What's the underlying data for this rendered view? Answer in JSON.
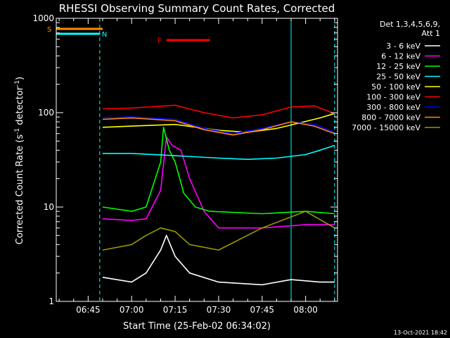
{
  "chart_data": {
    "type": "line",
    "title": "RHESSI Observing Summary Count Rates, Corrected",
    "xlabel": "Start Time (25-Feb-02 06:34:02)",
    "ylabel_main": "Corrected Count Rate (s",
    "ylabel_sup1": "-1",
    "ylabel_mid": " detector",
    "ylabel_sup2": "-1",
    "ylabel_end": ")",
    "yscale": "log",
    "ylim": [
      1,
      1000
    ],
    "xlim": [
      "06:34",
      "08:11"
    ],
    "x_ticks": [
      "06:45",
      "07:00",
      "07:15",
      "07:30",
      "07:45",
      "08:00"
    ],
    "y_ticks": [
      "1",
      "10",
      "100",
      "1000"
    ],
    "legend_placement": "top-right",
    "legend_header": [
      "Det 1,3,4,5,6,9,",
      "Att 1"
    ],
    "timestamp": "13-Oct-2021 18:42",
    "flags": [
      {
        "label": "S",
        "color": "#ff8c00",
        "start": "06:34",
        "end": "06:50"
      },
      {
        "label": "N",
        "color": "#00ffff",
        "start": "06:34",
        "end": "06:49"
      },
      {
        "label": "F",
        "color": "#ff0000",
        "start": "07:12",
        "end": "07:27"
      }
    ],
    "night_markers": {
      "solid": [
        "06:34",
        "07:55"
      ],
      "dashed": [
        "06:49",
        "08:10"
      ]
    },
    "series": [
      {
        "name": "3 - 6 keV",
        "color": "#ffffff",
        "x": [
          "06:50",
          "07:00",
          "07:05",
          "07:10",
          "07:12",
          "07:15",
          "07:20",
          "07:30",
          "07:45",
          "07:55",
          "08:05",
          "08:10"
        ],
        "y": [
          1.8,
          1.6,
          2.0,
          3.5,
          5.0,
          3.0,
          2.0,
          1.6,
          1.5,
          1.7,
          1.6,
          1.6
        ]
      },
      {
        "name": "6 - 12 keV",
        "color": "#ff00ff",
        "x": [
          "06:50",
          "07:00",
          "07:05",
          "07:10",
          "07:12",
          "07:14",
          "07:17",
          "07:20",
          "07:25",
          "07:30",
          "07:45",
          "08:00",
          "08:10"
        ],
        "y": [
          7.5,
          7.2,
          7.5,
          15,
          55,
          45,
          40,
          20,
          9,
          6,
          6,
          6.5,
          6.5
        ]
      },
      {
        "name": "12 - 25 keV",
        "color": "#00ff00",
        "x": [
          "06:50",
          "07:00",
          "07:05",
          "07:10",
          "07:11",
          "07:13",
          "07:15",
          "07:18",
          "07:22",
          "07:27",
          "07:45",
          "08:00",
          "08:10"
        ],
        "y": [
          10,
          9,
          10,
          30,
          70,
          40,
          30,
          14,
          10,
          9,
          8.5,
          9,
          8.5
        ]
      },
      {
        "name": "25 - 50 keV",
        "color": "#00ffff",
        "x": [
          "06:50",
          "07:00",
          "07:15",
          "07:30",
          "07:40",
          "07:50",
          "08:00",
          "08:05",
          "08:10"
        ],
        "y": [
          37,
          37,
          35,
          33,
          32,
          33,
          36,
          40,
          45
        ]
      },
      {
        "name": "50 - 100 keV",
        "color": "#ffff00",
        "x": [
          "06:50",
          "07:00",
          "07:15",
          "07:30",
          "07:40",
          "07:50",
          "07:58",
          "08:05",
          "08:10"
        ],
        "y": [
          70,
          72,
          75,
          65,
          62,
          68,
          78,
          88,
          98
        ]
      },
      {
        "name": "100 - 300 keV",
        "color": "#ff0000",
        "x": [
          "06:50",
          "07:00",
          "07:15",
          "07:25",
          "07:35",
          "07:45",
          "07:55",
          "08:03",
          "08:10"
        ],
        "y": [
          110,
          112,
          120,
          100,
          88,
          95,
          115,
          118,
          98
        ]
      },
      {
        "name": "300 - 800 keV",
        "color": "#0000ff",
        "x": [
          "06:50",
          "07:00",
          "07:15",
          "07:25",
          "07:35",
          "07:45",
          "07:55",
          "08:03",
          "08:10"
        ],
        "y": [
          88,
          90,
          85,
          68,
          60,
          68,
          80,
          75,
          62
        ]
      },
      {
        "name": "800 - 7000 keV",
        "color": "#ff8c00",
        "x": [
          "06:50",
          "07:00",
          "07:15",
          "07:25",
          "07:35",
          "07:45",
          "07:55",
          "08:03",
          "08:10"
        ],
        "y": [
          85,
          88,
          82,
          66,
          58,
          66,
          80,
          72,
          60
        ]
      },
      {
        "name": "7000 - 15000 keV",
        "color": "#999900",
        "x": [
          "06:50",
          "07:00",
          "07:05",
          "07:10",
          "07:15",
          "07:20",
          "07:30",
          "07:45",
          "08:00",
          "08:10"
        ],
        "y": [
          3.5,
          4,
          5,
          6,
          5.5,
          4,
          3.5,
          6,
          9,
          6
        ]
      }
    ]
  }
}
